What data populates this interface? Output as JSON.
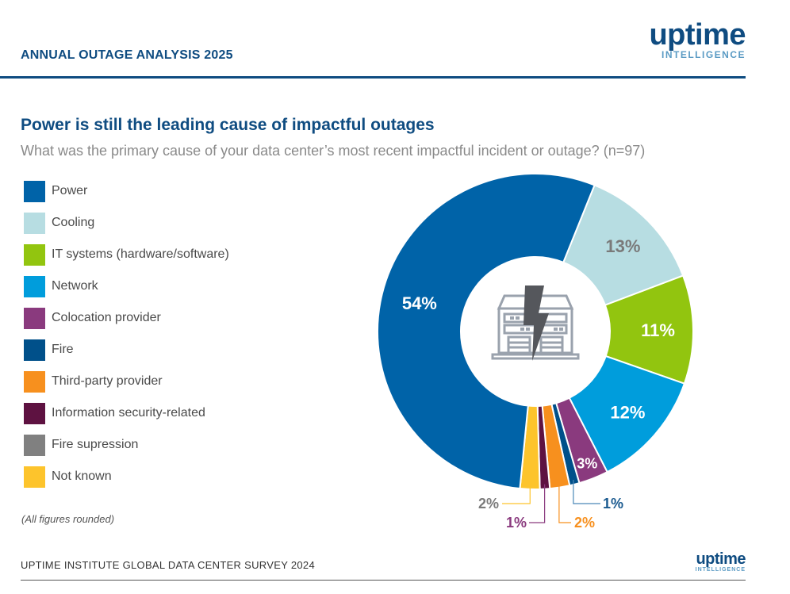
{
  "header": {
    "title": "ANNUAL OUTAGE ANALYSIS 2025",
    "logo_word": "uptime",
    "logo_sub": "INTELLIGENCE"
  },
  "footer": {
    "source": "UPTIME INSTITUTE GLOBAL DATA CENTER SURVEY 2024",
    "logo_word": "uptime",
    "logo_sub": "INTELLIGENCE"
  },
  "note": "(All figures rounded)",
  "chart_data": {
    "type": "pie",
    "variant": "donut",
    "title": "Power is still the leading cause of impactful outages",
    "subtitle": "What was the primary cause of your data center’s most recent impactful incident or outage? (n=97)",
    "center_icon": "data-center-power-outage-icon",
    "legend_position": "left",
    "slices": [
      {
        "name": "Power",
        "value": 54,
        "label": "54%",
        "color": "#0063a8",
        "label_color": "#ffffff",
        "label_style": "inside"
      },
      {
        "name": "Cooling",
        "value": 13,
        "label": "13%",
        "color": "#b7dde2",
        "label_color": "#7a7a7a",
        "label_style": "inside"
      },
      {
        "name": "IT systems (hardware/software)",
        "value": 11,
        "label": "11%",
        "color": "#92c50f",
        "label_color": "#ffffff",
        "label_style": "inside"
      },
      {
        "name": "Network",
        "value": 12,
        "label": "12%",
        "color": "#009ddc",
        "label_color": "#ffffff",
        "label_style": "inside"
      },
      {
        "name": "Colocation provider",
        "value": 3,
        "label": "3%",
        "color": "#8a3a7e",
        "label_color": "#ffffff",
        "label_style": "inside"
      },
      {
        "name": "Fire",
        "value": 1,
        "label": "1%",
        "color": "#00508a",
        "label_color": "#1a5a8f",
        "label_style": "callout-right"
      },
      {
        "name": "Third-party provider",
        "value": 2,
        "label": "2%",
        "color": "#f7901e",
        "label_color": "#f7901e",
        "label_style": "callout-low-right"
      },
      {
        "name": "Information security-related",
        "value": 1,
        "label": "1%",
        "color": "#5e1241",
        "label_color": "#8a3a7e",
        "label_style": "callout-low-left"
      },
      {
        "name": "Fire supression",
        "value": 0,
        "label": "",
        "color": "#808080",
        "label_color": "#808080",
        "label_style": "none"
      },
      {
        "name": "Not known",
        "value": 2,
        "label": "2%",
        "color": "#fdc42c",
        "label_color": "#7a7a7a",
        "label_style": "callout-left"
      }
    ],
    "legend_order": [
      "Power",
      "Cooling",
      "IT systems (hardware/software)",
      "Network",
      "Colocation provider",
      "Fire",
      "Third-party provider",
      "Information security-related",
      "Fire supression",
      "Not known"
    ]
  }
}
